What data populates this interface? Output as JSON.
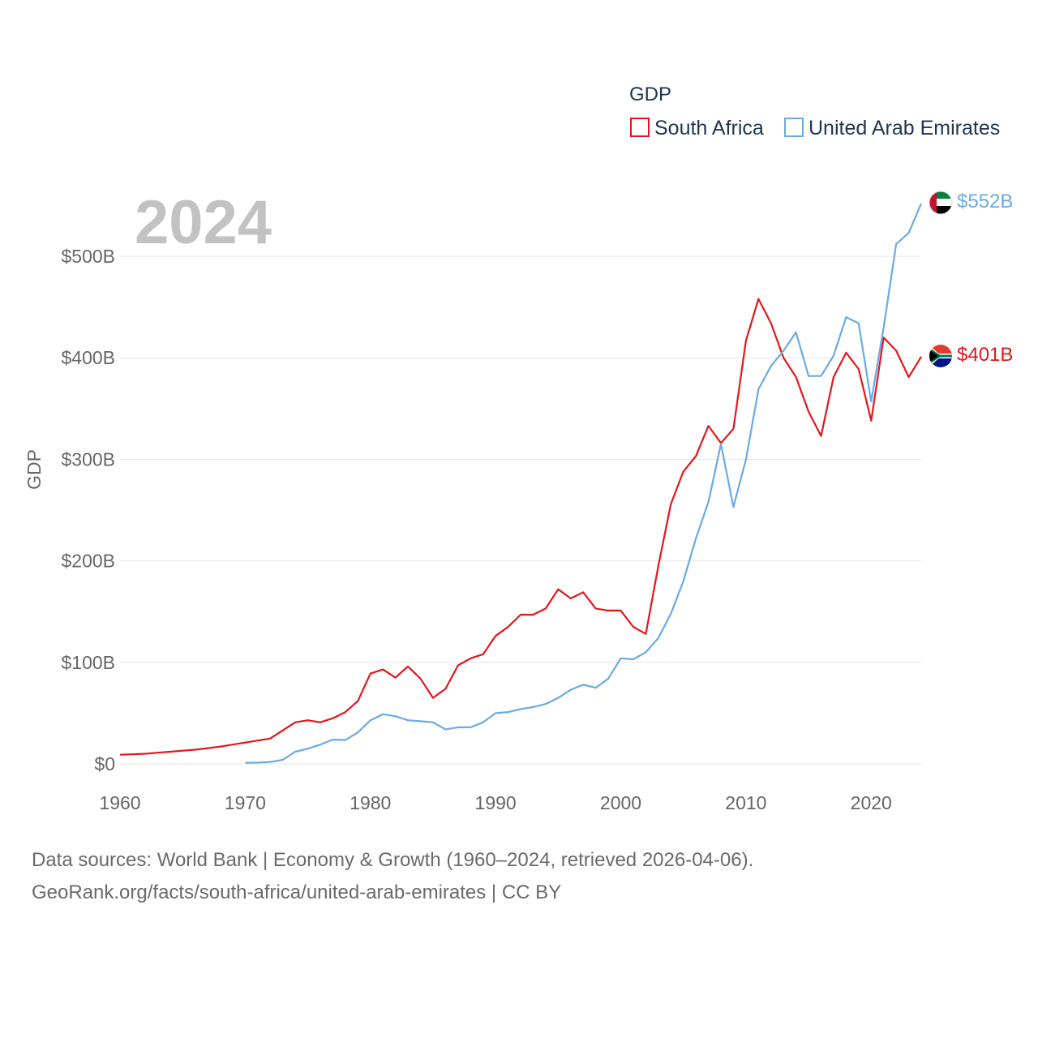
{
  "chart_data": {
    "type": "line",
    "legend_title": "GDP",
    "ylabel": "GDP",
    "year_display": "2024",
    "xlim": [
      1960,
      2024
    ],
    "ylim": [
      0,
      500
    ],
    "x_ticks": [
      1960,
      1970,
      1980,
      1990,
      2000,
      2010,
      2020
    ],
    "y_ticks": [
      {
        "value": 0,
        "label": "$0"
      },
      {
        "value": 100,
        "label": "$100B"
      },
      {
        "value": 200,
        "label": "$200B"
      },
      {
        "value": 300,
        "label": "$300B"
      },
      {
        "value": 400,
        "label": "$400B"
      },
      {
        "value": 500,
        "label": "$500B"
      }
    ],
    "series": [
      {
        "name": "South Africa",
        "color": "#e4161b",
        "end_label": "$401B",
        "flag": "south-africa-flag-icon",
        "x": [
          1960,
          1961,
          1962,
          1963,
          1964,
          1965,
          1966,
          1967,
          1968,
          1969,
          1970,
          1971,
          1972,
          1973,
          1974,
          1975,
          1976,
          1977,
          1978,
          1979,
          1980,
          1981,
          1982,
          1983,
          1984,
          1985,
          1986,
          1987,
          1988,
          1989,
          1990,
          1991,
          1992,
          1993,
          1994,
          1995,
          1996,
          1997,
          1998,
          1999,
          2000,
          2001,
          2002,
          2003,
          2004,
          2005,
          2006,
          2007,
          2008,
          2009,
          2010,
          2011,
          2012,
          2013,
          2014,
          2015,
          2016,
          2017,
          2018,
          2019,
          2020,
          2021,
          2022,
          2023,
          2024
        ],
        "values": [
          9,
          9.5,
          10,
          11,
          12,
          13,
          14,
          15.5,
          17,
          19,
          21,
          23,
          25,
          33,
          41,
          43,
          41,
          45,
          51,
          62,
          89,
          93,
          85,
          96,
          84,
          65,
          74,
          97,
          104,
          108,
          126,
          135,
          147,
          147,
          153,
          172,
          163,
          169,
          153,
          151,
          151,
          135,
          128,
          195,
          256,
          288,
          303,
          333,
          316,
          330,
          417,
          458,
          434,
          400,
          381,
          347,
          323,
          381,
          405,
          389,
          338,
          420,
          407,
          381,
          401
        ]
      },
      {
        "name": "United Arab Emirates",
        "color": "#6aaae4",
        "end_label": "$552B",
        "flag": "uae-flag-icon",
        "x": [
          1970,
          1971,
          1972,
          1973,
          1974,
          1975,
          1976,
          1977,
          1978,
          1979,
          1980,
          1981,
          1982,
          1983,
          1984,
          1985,
          1986,
          1987,
          1988,
          1989,
          1990,
          1991,
          1992,
          1993,
          1994,
          1995,
          1996,
          1997,
          1998,
          1999,
          2000,
          2001,
          2002,
          2003,
          2004,
          2005,
          2006,
          2007,
          2008,
          2009,
          2010,
          2011,
          2012,
          2013,
          2014,
          2015,
          2016,
          2017,
          2018,
          2019,
          2020,
          2021,
          2022,
          2023,
          2024
        ],
        "values": [
          1,
          1.3,
          1.9,
          4,
          12,
          15,
          19,
          24,
          23.5,
          31,
          43,
          49,
          47,
          43,
          42,
          41,
          34,
          36,
          36,
          41,
          50,
          51,
          54,
          56,
          59,
          65,
          73,
          78,
          75,
          84,
          104,
          103,
          110,
          124,
          148,
          180,
          222,
          258,
          315,
          253,
          300,
          369,
          392,
          407,
          425,
          382,
          382,
          402,
          440,
          434,
          357,
          430,
          512,
          523,
          552
        ]
      }
    ]
  },
  "source": {
    "line1": "Data sources: World Bank | Economy & Growth (1960–2024, retrieved 2026-04-06).",
    "line2": "GeoRank.org/facts/south-africa/united-arab-emirates | CC BY"
  }
}
